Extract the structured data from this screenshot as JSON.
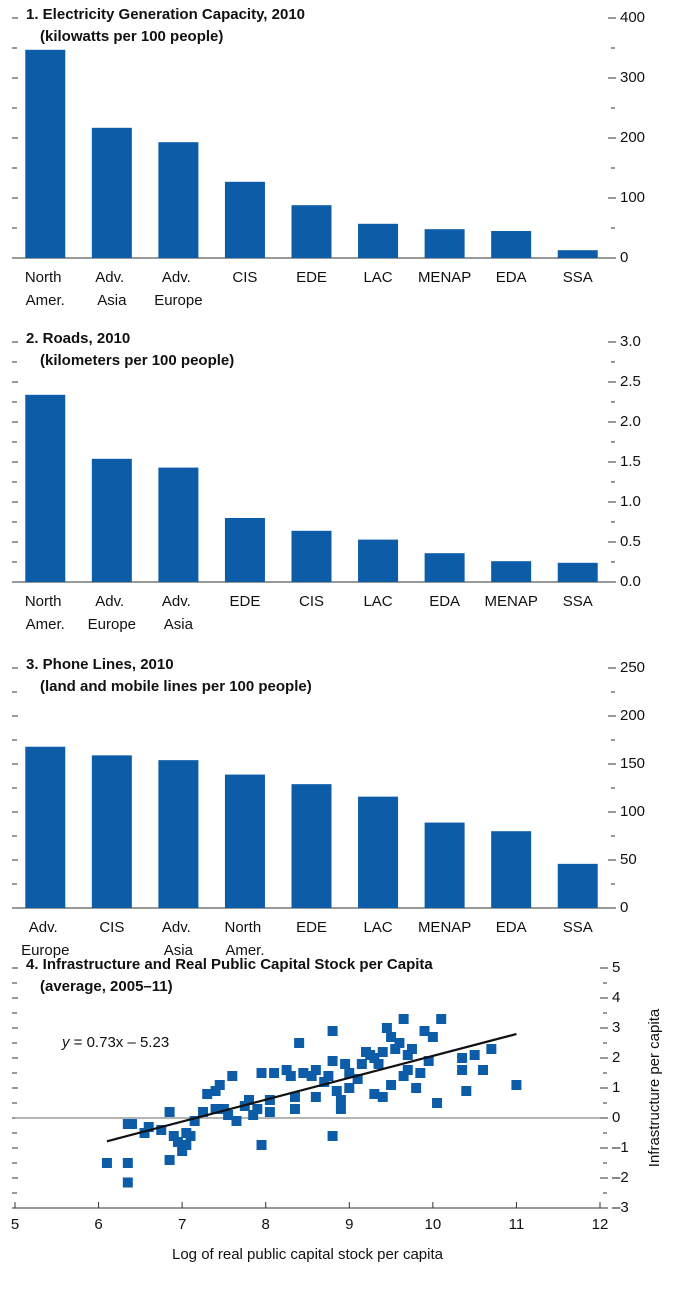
{
  "chart_data": [
    {
      "type": "bar",
      "title": "1. Electricity Generation Capacity, 2010",
      "subtitle": "(kilowatts per 100 people)",
      "categories": [
        "North Amer.",
        "Adv. Asia",
        "Adv. Europe",
        "CIS",
        "EDE",
        "LAC",
        "MENAP",
        "EDA",
        "SSA"
      ],
      "values": [
        347,
        217,
        193,
        127,
        88,
        57,
        48,
        45,
        13
      ],
      "color": "#0d5ca8",
      "ylim": [
        0,
        400
      ],
      "yticks": [
        0,
        100,
        200,
        300,
        400
      ],
      "yminorticks": [
        50,
        150,
        250,
        350
      ]
    },
    {
      "type": "bar",
      "title": "2. Roads, 2010",
      "subtitle": "(kilometers per 100 people)",
      "categories": [
        "North Amer.",
        "Adv. Europe",
        "Adv. Asia",
        "EDE",
        "CIS",
        "LAC",
        "EDA",
        "MENAP",
        "SSA"
      ],
      "values": [
        2.34,
        1.54,
        1.43,
        0.8,
        0.64,
        0.53,
        0.36,
        0.26,
        0.24
      ],
      "color": "#0d5ca8",
      "ylim": [
        0,
        3
      ],
      "yticks": [
        {
          "value": 0,
          "label": "0.0"
        },
        0.5,
        {
          "value": 1,
          "label": "1.0"
        },
        1.5,
        {
          "value": 2,
          "label": "2.0"
        },
        2.5,
        {
          "value": 3,
          "label": "3.0"
        }
      ],
      "yminorticks": [
        0.25,
        0.75,
        1.25,
        1.75,
        2.25,
        2.75
      ]
    },
    {
      "type": "bar",
      "title": "3. Phone Lines, 2010",
      "subtitle": "(land and mobile lines per 100 people)",
      "categories": [
        "Adv. Europe",
        "CIS",
        "Adv. Asia",
        "North Amer.",
        "EDE",
        "LAC",
        "MENAP",
        "EDA",
        "SSA"
      ],
      "values": [
        168,
        159,
        154,
        139,
        129,
        116,
        89,
        80,
        46
      ],
      "color": "#0d5ca8",
      "ylim": [
        0,
        250
      ],
      "yticks": [
        0,
        50,
        100,
        150,
        200,
        250
      ],
      "yminorticks": [
        25,
        75,
        125,
        175,
        225
      ]
    },
    {
      "type": "scatter",
      "title": "4. Infrastructure and Real Public Capital Stock per Capita",
      "subtitle": "(average, 2005–11)",
      "xlabel": "Log of real public capital stock per capita",
      "ylabel": "Infrastructure per capita",
      "annotation": "y = 0.73x – 5.23",
      "color": "#0d5ca8",
      "zero_line": true,
      "trendline": {
        "slope": 0.73,
        "intercept": -5.23,
        "x": [
          6.1,
          11
        ]
      },
      "x": [
        6.1,
        6.35,
        6.35,
        6.35,
        6.4,
        6.55,
        6.6,
        6.75,
        6.85,
        6.85,
        6.9,
        6.95,
        7.0,
        7.05,
        7.05,
        7.1,
        7.15,
        7.25,
        7.3,
        7.4,
        7.45,
        7.4,
        7.5,
        7.55,
        7.65,
        7.6,
        7.75,
        7.8,
        7.85,
        7.9,
        7.95,
        7.95,
        8.05,
        8.05,
        8.1,
        8.25,
        8.3,
        8.35,
        8.35,
        8.4,
        8.45,
        8.55,
        8.6,
        8.7,
        8.75,
        8.8,
        8.8,
        8.85,
        8.8,
        8.9,
        8.9,
        8.95,
        9.0,
        9.0,
        9.1,
        9.15,
        9.25,
        9.3,
        9.35,
        9.4,
        9.4,
        9.45,
        9.5,
        9.55,
        9.6,
        9.65,
        9.65,
        9.7,
        9.75,
        9.8,
        9.85,
        9.9,
        9.95,
        10.0,
        10.05,
        10.1,
        10.35,
        10.35,
        10.4,
        10.5,
        10.6,
        10.7,
        11.0,
        9.2,
        9.5,
        9.7,
        9.3,
        8.6
      ],
      "values": [
        -1.5,
        -1.5,
        -2.15,
        -0.2,
        -0.2,
        -0.5,
        -0.3,
        -0.4,
        0.2,
        -1.4,
        -0.6,
        -0.8,
        -1.1,
        -0.9,
        -0.5,
        -0.6,
        -0.1,
        0.2,
        0.8,
        0.9,
        1.1,
        0.3,
        0.3,
        0.1,
        -0.1,
        1.4,
        0.4,
        0.6,
        0.1,
        0.3,
        1.5,
        -0.9,
        0.6,
        0.2,
        1.5,
        1.6,
        1.4,
        0.7,
        0.3,
        2.5,
        1.5,
        1.4,
        0.7,
        1.2,
        1.4,
        2.9,
        1.9,
        0.9,
        -0.6,
        0.6,
        0.3,
        1.8,
        1.0,
        1.5,
        1.3,
        1.8,
        2.1,
        0.8,
        1.8,
        2.2,
        0.7,
        3.0,
        1.1,
        2.3,
        2.5,
        3.3,
        1.4,
        2.1,
        2.3,
        1.0,
        1.5,
        2.9,
        1.9,
        2.7,
        0.5,
        3.3,
        2.0,
        1.6,
        0.9,
        2.1,
        1.6,
        2.3,
        1.1,
        2.2,
        2.7,
        1.6,
        2.0,
        1.6
      ],
      "xlim": [
        5,
        12
      ],
      "xticks": [
        5,
        6,
        7,
        8,
        9,
        10,
        11,
        12
      ],
      "ylim": [
        -3,
        5
      ],
      "yticks": [
        {
          "value": -3,
          "label": "–3"
        },
        {
          "value": -2,
          "label": "–2"
        },
        {
          "value": -1,
          "label": "–1"
        },
        0,
        1,
        2,
        3,
        4,
        5
      ],
      "yminorticks": [
        -2.5,
        -1.5,
        -0.5,
        0.5,
        1.5,
        2.5,
        3.5,
        4.5
      ]
    }
  ]
}
